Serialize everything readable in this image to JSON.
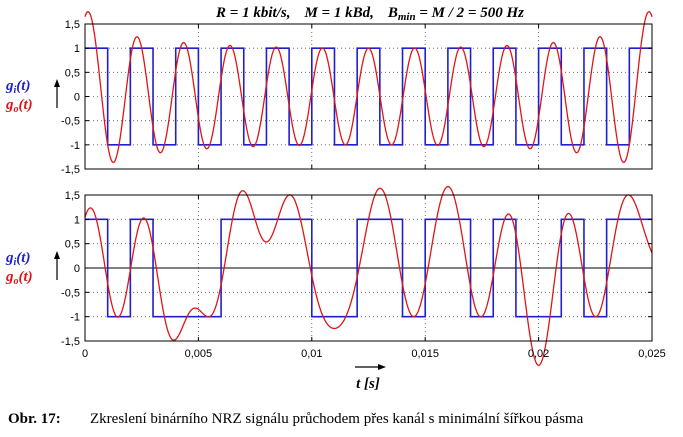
{
  "chart_data": [
    {
      "type": "line",
      "title": "R = 1 kbit/s,   M = 1 kBd,   Bmin = M / 2 = 500 Hz",
      "title_parts": {
        "r": "R = 1 kbit/s,",
        "m": "M = 1 kBd,",
        "b": "B",
        "b_sub": "min",
        "b_rest": " = M / 2 = 500 Hz"
      },
      "ylabel_parts": [
        {
          "main": "g",
          "sub": "i",
          "rest": "(t)",
          "color": "#1f1fd0"
        },
        {
          "main": "g",
          "sub": "o",
          "rest": "(t)",
          "color": "#e01515"
        }
      ],
      "xlim": [
        0,
        0.025
      ],
      "ylim": [
        -1.5,
        1.5
      ],
      "yticks": [
        "1,5",
        "1",
        "0,5",
        "0",
        "-0,5",
        "-1",
        "-1,5"
      ],
      "ytick_values": [
        1.5,
        1,
        0.5,
        0,
        -0.5,
        -1,
        -1.5
      ],
      "xtick_values": [
        0,
        0.005,
        0.01,
        0.015,
        0.02,
        0.025
      ],
      "grid": true,
      "bit_duration": 0.001,
      "bits": [
        1,
        0,
        1,
        0,
        1,
        0,
        1,
        0,
        1,
        0,
        1,
        0,
        1,
        0,
        1,
        0,
        1,
        0,
        1,
        0,
        1,
        0,
        1,
        0,
        1
      ],
      "series": [
        {
          "name": "gi(t)",
          "color": "#1f1fd0"
        },
        {
          "name": "go(t)",
          "color": "#e01515"
        }
      ]
    },
    {
      "type": "line",
      "ylabel_parts": [
        {
          "main": "g",
          "sub": "i",
          "rest": "(t)",
          "color": "#1f1fd0"
        },
        {
          "main": "g",
          "sub": "o",
          "rest": "(t)",
          "color": "#e01515"
        }
      ],
      "xlabel": "t [s]",
      "xlabel_parts": {
        "main": "t",
        "rest": " [s]"
      },
      "xlim": [
        0,
        0.025
      ],
      "ylim": [
        -1.5,
        1.5
      ],
      "yticks": [
        "1,5",
        "1",
        "0,5",
        "0",
        "-0,5",
        "-1",
        "-1,5"
      ],
      "ytick_values": [
        1.5,
        1,
        0.5,
        0,
        -0.5,
        -1,
        -1.5
      ],
      "xticks": [
        "0",
        "0,005",
        "0,01",
        "0,015",
        "0,02",
        "0,025"
      ],
      "xtick_values": [
        0,
        0.005,
        0.01,
        0.015,
        0.02,
        0.025
      ],
      "grid": true,
      "bit_duration": 0.001,
      "bits": [
        1,
        0,
        1,
        0,
        0,
        0,
        1,
        1,
        1,
        1,
        0,
        0,
        1,
        1,
        0,
        1,
        1,
        0,
        1,
        0,
        0,
        1,
        0,
        1,
        1
      ],
      "series": [
        {
          "name": "gi(t)",
          "color": "#1f1fd0"
        },
        {
          "name": "go(t)",
          "color": "#e01515"
        }
      ]
    }
  ],
  "caption": {
    "label": "Obr. 17:",
    "text": "Zkreslení binárního NRZ signálu průchodem přes kanál s minimální šířkou pásma"
  }
}
